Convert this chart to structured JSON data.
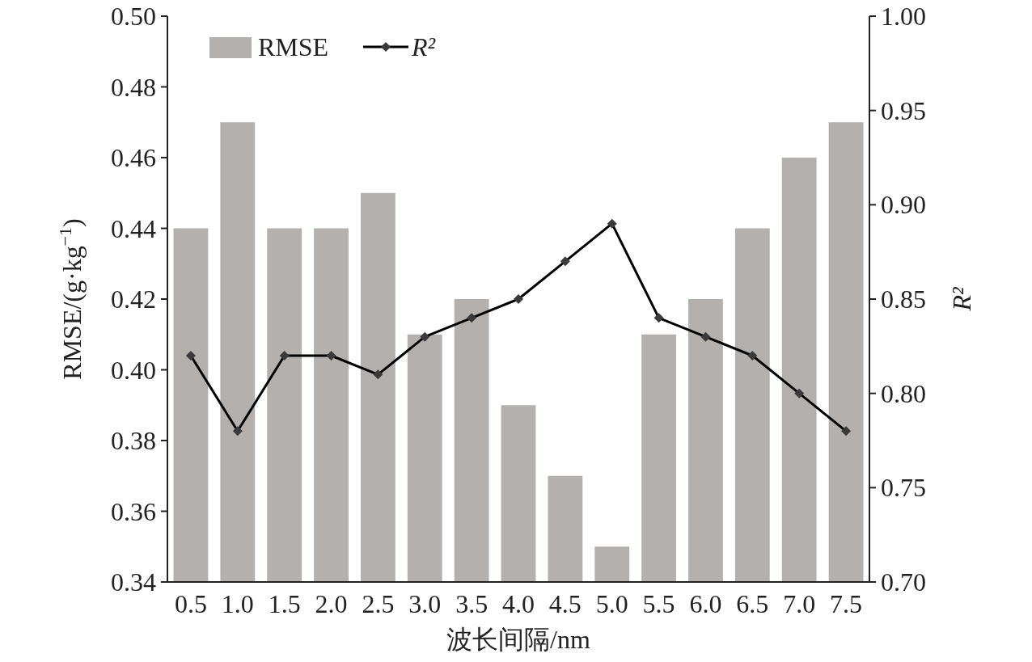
{
  "chart_data": {
    "type": "bar",
    "xlabel": "波长间隔/nm",
    "ylabel": "RMSE/(g·kg$^{−1}$)",
    "y2label": "R²",
    "categories": [
      "0.5",
      "1.0",
      "1.5",
      "2.0",
      "2.5",
      "3.0",
      "3.5",
      "4.0",
      "4.5",
      "5.0",
      "5.5",
      "6.0",
      "6.5",
      "7.0",
      "7.5"
    ],
    "series": [
      {
        "name": "RMSE",
        "color": "#b4b0ae",
        "values": [
          0.44,
          0.47,
          0.44,
          0.44,
          0.45,
          0.41,
          0.42,
          0.39,
          0.37,
          0.35,
          0.41,
          0.42,
          0.44,
          0.46,
          0.47
        ]
      },
      {
        "name": "R²",
        "type": "line",
        "axis": "y2",
        "color": "#000000",
        "marker": "diamond",
        "values": [
          0.82,
          0.78,
          0.82,
          0.82,
          0.81,
          0.83,
          0.84,
          0.85,
          0.87,
          0.89,
          0.84,
          0.83,
          0.82,
          0.8,
          0.78
        ]
      }
    ],
    "ylim": [
      0.34,
      0.5
    ],
    "yticks": [
      0.34,
      0.36,
      0.38,
      {
        "value": 0.4,
        "label": "0.40"
      },
      0.42,
      0.44,
      0.46,
      0.48,
      {
        "value": 0.5,
        "label": "0.50"
      }
    ],
    "y2lim": [
      0.7,
      1.0
    ],
    "y2ticks": [
      {
        "value": 0.7,
        "label": "0.70"
      },
      0.75,
      {
        "value": 0.8,
        "label": "0.80"
      },
      0.85,
      {
        "value": 0.9,
        "label": "0.90"
      },
      0.95,
      {
        "value": 1.0,
        "label": "1.00"
      }
    ],
    "legend": "top left"
  }
}
